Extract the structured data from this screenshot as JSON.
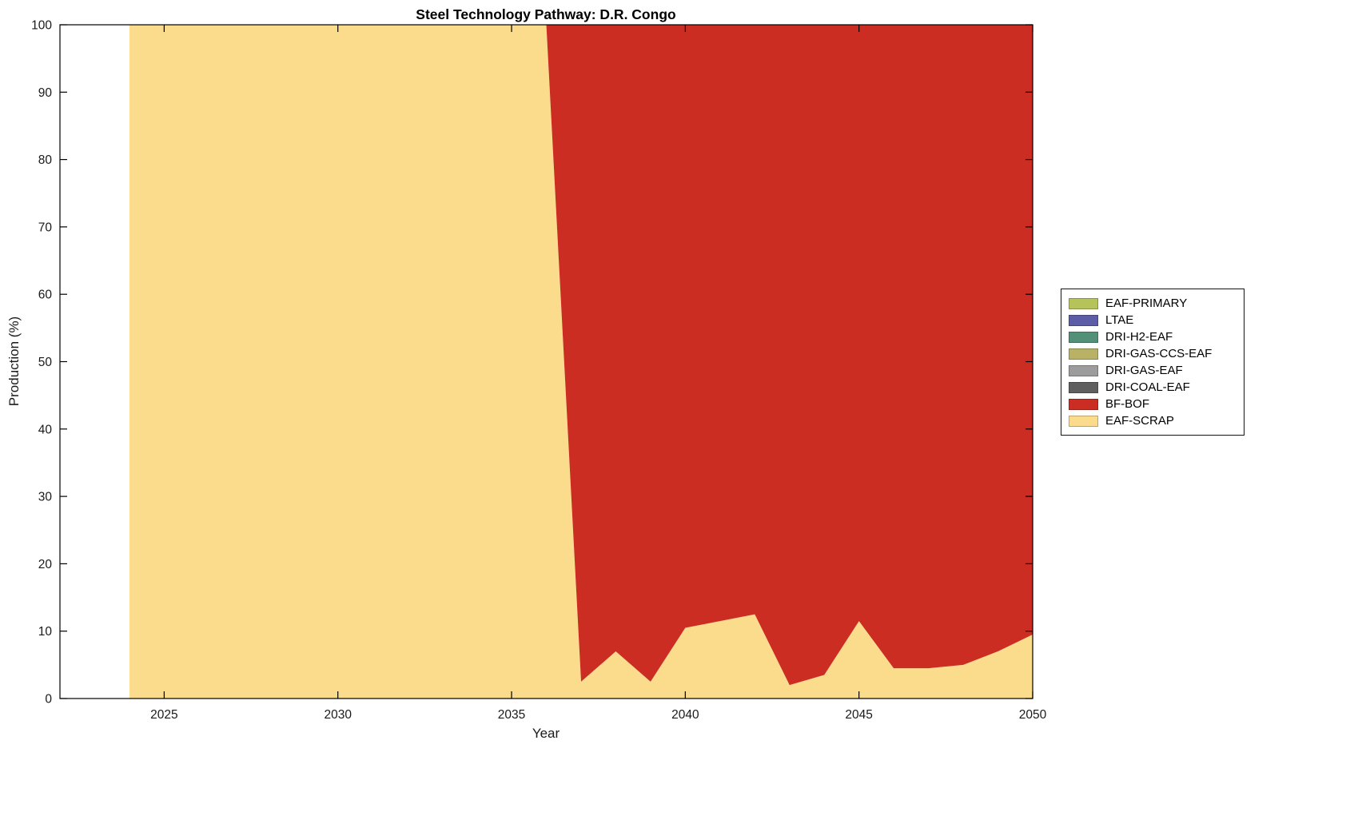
{
  "chart_data": {
    "type": "area",
    "stacked": true,
    "title": "Steel Technology Pathway: D.R. Congo",
    "xlabel": "Year",
    "ylabel": "Production (%)",
    "xlim": [
      2022,
      2050
    ],
    "ylim": [
      0,
      100
    ],
    "xticks": [
      2025,
      2030,
      2035,
      2040,
      2045,
      2050
    ],
    "yticks": [
      0,
      10,
      20,
      30,
      40,
      50,
      60,
      70,
      80,
      90,
      100
    ],
    "grid": false,
    "legend_position": "right-outside",
    "stack_order": "last-series-at-bottom",
    "x": [
      2024,
      2025,
      2026,
      2027,
      2028,
      2029,
      2030,
      2031,
      2032,
      2033,
      2034,
      2035,
      2036,
      2037,
      2038,
      2039,
      2040,
      2041,
      2042,
      2043,
      2044,
      2045,
      2046,
      2047,
      2048,
      2049,
      2050
    ],
    "series": [
      {
        "name": "EAF-PRIMARY",
        "color": "#B5C35A",
        "values": [
          0,
          0,
          0,
          0,
          0,
          0,
          0,
          0,
          0,
          0,
          0,
          0,
          0,
          0,
          0,
          0,
          0,
          0,
          0,
          0,
          0,
          0,
          0,
          0,
          0,
          0,
          0
        ]
      },
      {
        "name": "LTAE",
        "color": "#5C5DA6",
        "values": [
          0,
          0,
          0,
          0,
          0,
          0,
          0,
          0,
          0,
          0,
          0,
          0,
          0,
          0,
          0,
          0,
          0,
          0,
          0,
          0,
          0,
          0,
          0,
          0,
          0,
          0,
          0
        ]
      },
      {
        "name": "DRI-H2-EAF",
        "color": "#529178",
        "values": [
          0,
          0,
          0,
          0,
          0,
          0,
          0,
          0,
          0,
          0,
          0,
          0,
          0,
          0,
          0,
          0,
          0,
          0,
          0,
          0,
          0,
          0,
          0,
          0,
          0,
          0,
          0
        ]
      },
      {
        "name": "DRI-GAS-CCS-EAF",
        "color": "#B9B266",
        "values": [
          0,
          0,
          0,
          0,
          0,
          0,
          0,
          0,
          0,
          0,
          0,
          0,
          0,
          0,
          0,
          0,
          0,
          0,
          0,
          0,
          0,
          0,
          0,
          0,
          0,
          0,
          0
        ]
      },
      {
        "name": "DRI-GAS-EAF",
        "color": "#9C9C9C",
        "values": [
          0,
          0,
          0,
          0,
          0,
          0,
          0,
          0,
          0,
          0,
          0,
          0,
          0,
          0,
          0,
          0,
          0,
          0,
          0,
          0,
          0,
          0,
          0,
          0,
          0,
          0,
          0
        ]
      },
      {
        "name": "DRI-COAL-EAF",
        "color": "#5F5F5F",
        "values": [
          0,
          0,
          0,
          0,
          0,
          0,
          0,
          0,
          0,
          0,
          0,
          0,
          0,
          0,
          0,
          0,
          0,
          0,
          0,
          0,
          0,
          0,
          0,
          0,
          0,
          0,
          0
        ]
      },
      {
        "name": "BF-BOF",
        "color": "#CB2D23",
        "values": [
          0,
          0,
          0,
          0,
          0,
          0,
          0,
          0,
          0,
          0,
          0,
          0,
          0,
          97.5,
          93,
          97.5,
          89.5,
          88.5,
          87.5,
          98,
          96.5,
          88.5,
          95.5,
          95.5,
          95,
          93,
          90.5
        ]
      },
      {
        "name": "EAF-SCRAP",
        "color": "#FADC8C",
        "values": [
          100,
          100,
          100,
          100,
          100,
          100,
          100,
          100,
          100,
          100,
          100,
          100,
          100,
          2.5,
          7,
          2.5,
          10.5,
          11.5,
          12.5,
          2,
          3.5,
          11.5,
          4.5,
          4.5,
          5,
          7,
          9.5
        ]
      }
    ]
  }
}
